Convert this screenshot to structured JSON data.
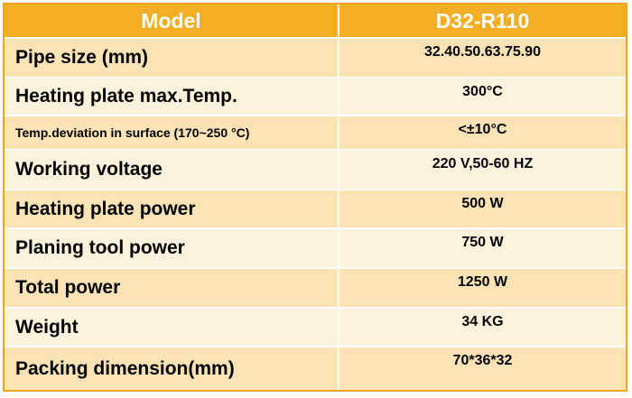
{
  "header": {
    "col1": "Model",
    "col2": "D32-R110"
  },
  "rows": [
    {
      "label": "Pipe size (mm)",
      "value": "32.40.50.63.75.90"
    },
    {
      "label": "Heating plate max.Temp.",
      "value": "300°C"
    },
    {
      "label": "Temp.deviation in surface (170~250 °C)",
      "value": "<±10°C"
    },
    {
      "label": "Working voltage",
      "value": "220 V,50-60 HZ"
    },
    {
      "label": "Heating plate power",
      "value": "500 W"
    },
    {
      "label": "Planing tool power",
      "value": "750 W"
    },
    {
      "label": "Total power",
      "value": "1250 W"
    },
    {
      "label": "Weight",
      "value": "34 KG"
    },
    {
      "label": "Packing dimension(mm)",
      "value": "70*36*32"
    }
  ],
  "colors": {
    "header": "#f4ae26",
    "row_odd": "#fbe3b6",
    "row_even": "#fdf2dc",
    "border": "#f2a51a"
  }
}
